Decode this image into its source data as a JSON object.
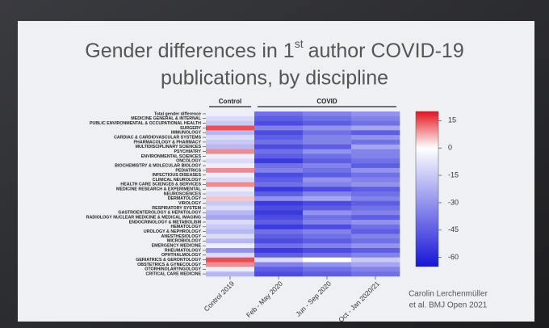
{
  "chart_data": {
    "type": "heatmap",
    "title": [
      "Gender differences in 1",
      "st",
      "author COVID-19",
      "publications, by discipline"
    ],
    "citation": [
      "Carolin Lerchenmüller",
      "et al. BMJ Open 2021"
    ],
    "column_groups": [
      "Control",
      "COVID"
    ],
    "columns": [
      "Control 2019",
      "Feb - May 2020",
      "Jun - Sep 2020",
      "Oct - Jan 2020/21"
    ],
    "rows": [
      "Total gender difference",
      "MEDICINE GENERAL & INTERNAL",
      "PUBLIC ENVIRONMENTAL & OCCUPATIONAL HEALTH",
      "SURGERY",
      "IMMUNOLOGY",
      "CARDIAC & CARDIOVASCULAR SYSTEMS",
      "PHARMACOLOGY & PHARMACY",
      "MULTIDISCIPLINARY SCIENCES",
      "PSYCHIATRY",
      "ENVIRONMENTAL SCIENCES",
      "ONCOLOGY",
      "BIOCHEMISTRY & MOLECULAR BIOLOGY",
      "PEDIATRICS",
      "INFECTIOUS DISEASES",
      "CLINICAL NEUROLOGY",
      "HEALTH CARE SCIENCES & SERVICES",
      "MEDICINE RESEARCH & EXPERIMENTAL",
      "NEUROSCIENCES",
      "DERMATOLOGY",
      "VIROLOGY",
      "RESPIRATORY SYSTEM",
      "GASTROENTEROLOGY & HEPATOLOGY",
      "RADIOLOGY NUCLEAR MEDICINE & MEDICAL IMAGING",
      "ENDOCRINOLOGY & METABOLISM",
      "HEMATOLOGY",
      "UROLOGY & NEPHROLOGY",
      "ANESTHESIOLOGY",
      "MICROBIOLOGY",
      "EMERGENCY MEDICINE",
      "RHEUMATOLOGY",
      "OPHTHALMOLOGY",
      "GERIATRICS & GERONTOLOGY",
      "OBSTETRICS & GYNECOLOGY",
      "OTORHINOLARYNGOLOGY",
      "CRITICAL CARE MEDICINE"
    ],
    "values": [
      [
        -5,
        -40,
        -35,
        -30
      ],
      [
        -10,
        -45,
        -40,
        -35
      ],
      [
        -15,
        -50,
        -45,
        -40
      ],
      [
        15,
        -35,
        -30,
        -25
      ],
      [
        -20,
        -50,
        -40,
        -45
      ],
      [
        -10,
        -45,
        -35,
        -30
      ],
      [
        -15,
        -40,
        -35,
        -40
      ],
      [
        -20,
        -50,
        -45,
        -25
      ],
      [
        10,
        -40,
        -30,
        -35
      ],
      [
        -5,
        -45,
        -40,
        -35
      ],
      [
        -10,
        -55,
        -45,
        -40
      ],
      [
        -5,
        -40,
        -35,
        -45
      ],
      [
        10,
        -35,
        -40,
        -30
      ],
      [
        -5,
        -50,
        -45,
        -40
      ],
      [
        -10,
        -45,
        -30,
        -35
      ],
      [
        10,
        -40,
        -35,
        -30
      ],
      [
        -5,
        -55,
        -50,
        -45
      ],
      [
        -10,
        -45,
        -35,
        -40
      ],
      [
        5,
        -30,
        -25,
        -35
      ],
      [
        -15,
        -55,
        -50,
        -45
      ],
      [
        -10,
        -50,
        -45,
        -40
      ],
      [
        -20,
        -55,
        -30,
        -35
      ],
      [
        -25,
        -50,
        -40,
        -45
      ],
      [
        -10,
        -45,
        -35,
        -30
      ],
      [
        -15,
        -55,
        -50,
        -40
      ],
      [
        -20,
        -40,
        -35,
        -45
      ],
      [
        -10,
        -45,
        -40,
        -35
      ],
      [
        -20,
        -50,
        -45,
        -40
      ],
      [
        -5,
        -40,
        -35,
        -30
      ],
      [
        -30,
        -55,
        -50,
        -45
      ],
      [
        -10,
        -45,
        -40,
        -35
      ],
      [
        15,
        -10,
        0,
        -15
      ],
      [
        10,
        -35,
        -30,
        -25
      ],
      [
        -5,
        -45,
        -40,
        -35
      ],
      [
        -20,
        -50,
        -45,
        -40
      ]
    ],
    "zlim": [
      -65,
      20
    ],
    "zticks": [
      15,
      0,
      -15,
      -30,
      -45,
      -60
    ],
    "zmid": 0,
    "colors": [
      "#1616d8",
      "#ffffff",
      "#e3141c"
    ]
  }
}
